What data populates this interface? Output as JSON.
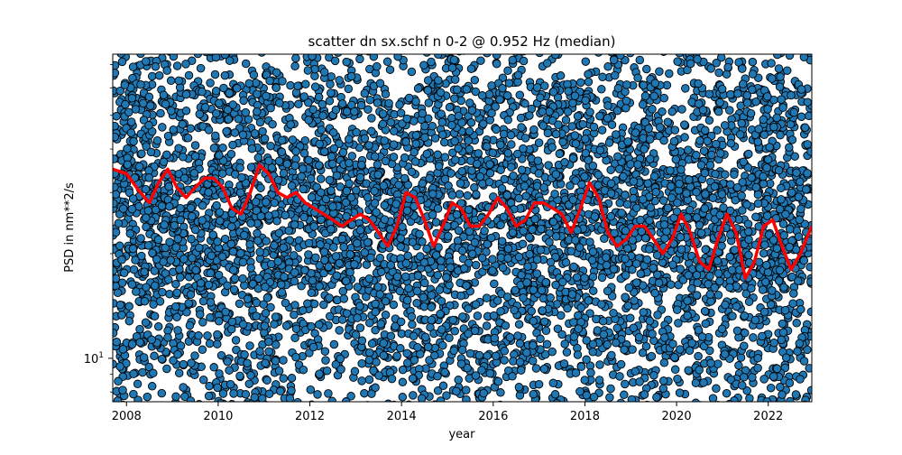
{
  "chart_data": {
    "type": "scatter",
    "title": "scatter dn sx.schf n 0-2 @ 0.952 Hz (median)",
    "xlabel": "year",
    "ylabel": "PSD in nm**2/s",
    "xlim": [
      2007.7,
      2022.95
    ],
    "ylim": [
      7.5,
      75
    ],
    "yscale": "log",
    "x_ticks": [
      2008,
      2010,
      2012,
      2014,
      2016,
      2018,
      2020,
      2022
    ],
    "x_tick_labels": [
      "2008",
      "2010",
      "2012",
      "2014",
      "2016",
      "2018",
      "2020",
      "2022"
    ],
    "y_major_ticks": [
      10
    ],
    "y_major_tick_labels": [
      "10^1"
    ],
    "y_minor_ticks": [
      8,
      9,
      20,
      30,
      40,
      50,
      60,
      70
    ],
    "grid": false,
    "series": [
      {
        "kind": "scatter",
        "color": "#1f77b4",
        "edgecolor": "#000000",
        "count": 5600,
        "values": {
          "q05": 9.0,
          "q25": 16.0,
          "q50": 25.0,
          "q75": 38.0,
          "q95": 62.0
        }
      },
      {
        "kind": "line",
        "color": "#ff0000",
        "x": [
          2007.7,
          2008.0,
          2008.3,
          2008.5,
          2008.7,
          2008.9,
          2009.1,
          2009.3,
          2009.5,
          2009.7,
          2009.9,
          2010.1,
          2010.3,
          2010.5,
          2010.7,
          2010.9,
          2011.1,
          2011.3,
          2011.5,
          2011.7,
          2011.9,
          2012.1,
          2012.3,
          2012.5,
          2012.7,
          2012.9,
          2013.1,
          2013.3,
          2013.5,
          2013.7,
          2013.9,
          2014.1,
          2014.3,
          2014.5,
          2014.7,
          2014.9,
          2015.1,
          2015.3,
          2015.5,
          2015.7,
          2015.9,
          2016.1,
          2016.3,
          2016.5,
          2016.7,
          2016.9,
          2017.1,
          2017.3,
          2017.5,
          2017.7,
          2017.9,
          2018.1,
          2018.3,
          2018.5,
          2018.7,
          2018.9,
          2019.1,
          2019.3,
          2019.5,
          2019.7,
          2019.9,
          2020.1,
          2020.3,
          2020.5,
          2020.7,
          2020.9,
          2021.1,
          2021.3,
          2021.5,
          2021.7,
          2021.9,
          2022.1,
          2022.3,
          2022.5,
          2022.7,
          2022.95
        ],
        "y": [
          35,
          34,
          30,
          28,
          32,
          35,
          31,
          29,
          31,
          33,
          33,
          31,
          27,
          26,
          30,
          36,
          34,
          30,
          29,
          30,
          28,
          27,
          26,
          25,
          24,
          25,
          26,
          25,
          23,
          21,
          24,
          30,
          29,
          25,
          21,
          24,
          28,
          27,
          24,
          24,
          26,
          29,
          27,
          24,
          25,
          28,
          28,
          27,
          26,
          23,
          27,
          32,
          29,
          23,
          21,
          22,
          24,
          24,
          22,
          20,
          22,
          26,
          23,
          19,
          18,
          22,
          26,
          23,
          17,
          19,
          24,
          25,
          21,
          18,
          20,
          24
        ]
      }
    ]
  }
}
